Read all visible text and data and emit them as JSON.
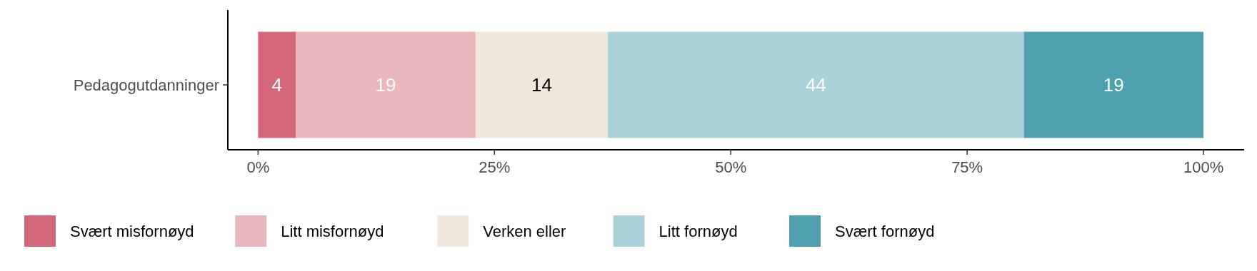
{
  "chart_data": {
    "type": "bar",
    "orientation": "horizontal",
    "stacked": true,
    "categories": [
      "Pedagogutdanninger"
    ],
    "series": [
      {
        "name": "Svært misfornøyd",
        "color": "#d4687a",
        "values": [
          4
        ]
      },
      {
        "name": "Litt misfornøyd",
        "color": "#e9b6bb",
        "values": [
          19
        ]
      },
      {
        "name": "Verken eller",
        "color": "#f0e6d9",
        "values": [
          14
        ]
      },
      {
        "name": "Litt fornøyd",
        "color": "#acd2d9",
        "values": [
          44
        ]
      },
      {
        "name": "Svært fornøyd",
        "color": "#4ea0af",
        "values": [
          19
        ]
      }
    ],
    "xlim": [
      -3.2,
      104.3
    ],
    "xticks": [
      {
        "value": 0,
        "label": "0%"
      },
      {
        "value": 25,
        "label": "25%"
      },
      {
        "value": 50,
        "label": "50%"
      },
      {
        "value": 75,
        "label": "75%"
      },
      {
        "value": 100,
        "label": "100%"
      }
    ],
    "data_labels": true,
    "legend": "bottom",
    "grid": false
  }
}
